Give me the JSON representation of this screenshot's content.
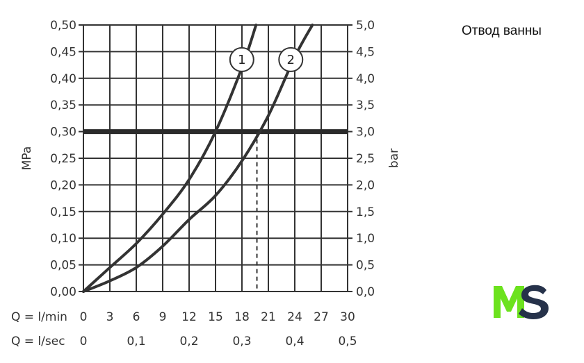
{
  "side_title": "Отвод ванны",
  "logo": {
    "text": "MS",
    "colors": {
      "M": "#6ce21e",
      "S": "#26324a"
    }
  },
  "chart_data": {
    "type": "line",
    "x_ticks_lmin": [
      "0",
      "3",
      "6",
      "9",
      "12",
      "15",
      "18",
      "21",
      "24",
      "27",
      "30"
    ],
    "x_ticks_lsec": [
      "0",
      "0,1",
      "0,2",
      "0,3",
      "0,4",
      "0,5"
    ],
    "x_row1_label": "Q = l/min",
    "x_row2_label": "Q = l/sec",
    "y_left_ticks": [
      "0,00",
      "0,05",
      "0,10",
      "0,15",
      "0,20",
      "0,25",
      "0,30",
      "0,35",
      "0,40",
      "0,45",
      "0,50"
    ],
    "y_right_ticks": [
      "0,0",
      "0,5",
      "1,0",
      "1,5",
      "2,0",
      "2,5",
      "3,0",
      "3,5",
      "4,0",
      "4,5",
      "5,0"
    ],
    "y_left_label": "MPa",
    "y_right_label": "bar",
    "xlim": [
      0,
      30
    ],
    "ylim": [
      0,
      0.5
    ],
    "grid": true,
    "reference_line": {
      "y": 0.3
    },
    "series": [
      {
        "name": "1",
        "x": [
          0,
          3,
          6,
          9,
          12,
          15,
          18,
          19.6
        ],
        "y": [
          0,
          0.045,
          0.09,
          0.145,
          0.21,
          0.3,
          0.42,
          0.5
        ],
        "crossing_x": 15
      },
      {
        "name": "2",
        "x": [
          0,
          3,
          6,
          9,
          12,
          15,
          18,
          21,
          24,
          26
        ],
        "y": [
          0,
          0.02,
          0.045,
          0.085,
          0.135,
          0.18,
          0.245,
          0.33,
          0.44,
          0.5
        ],
        "crossing_x": 19.7
      }
    ],
    "colors": {
      "curve": "#333333",
      "grid": "#333333",
      "reference": "#2b2b2b"
    }
  }
}
